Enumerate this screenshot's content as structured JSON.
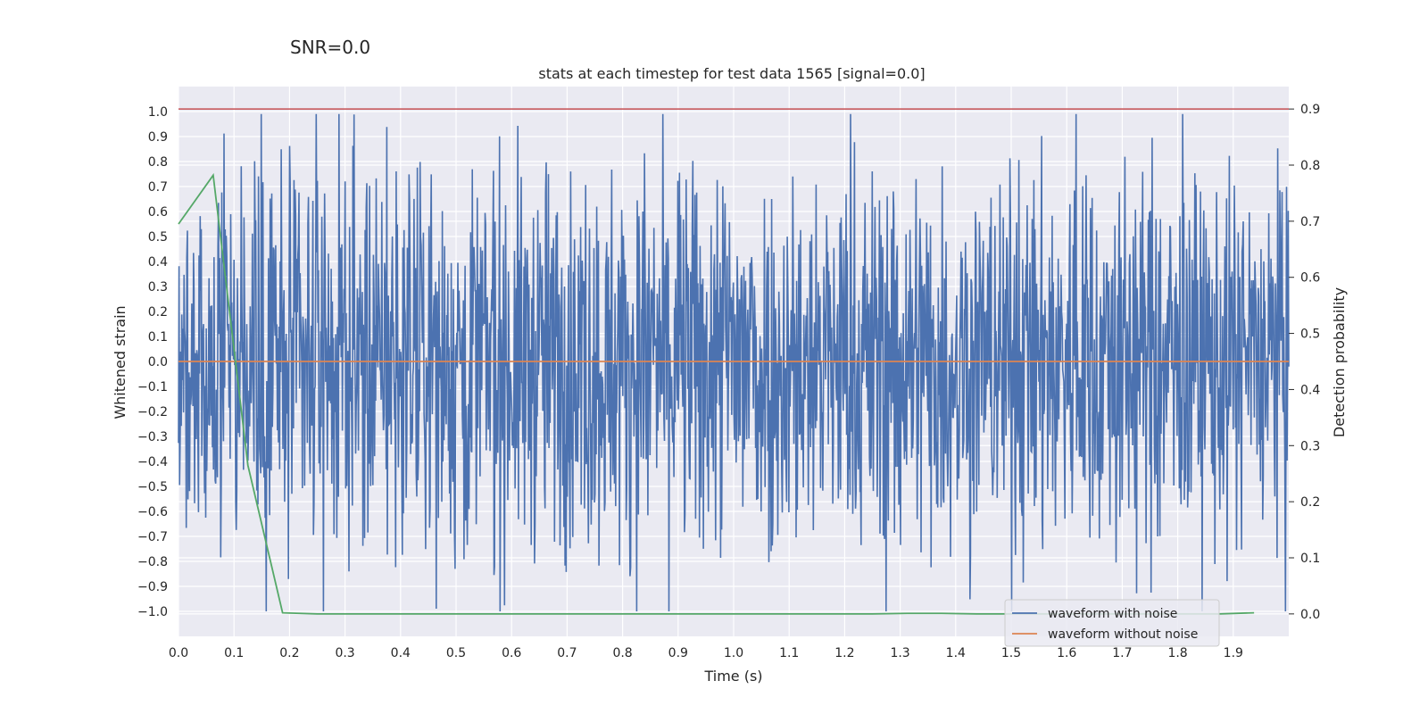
{
  "suptitle": "SNR=0.0",
  "chart_data": {
    "type": "line",
    "title": "stats at each timestep for test data 1565 [signal=0.0]",
    "xlabel": "Time (s)",
    "ylabel": "Whitened strain",
    "y2label": "Detection probability",
    "xlim": [
      0.0,
      2.0
    ],
    "ylim": [
      -1.1,
      1.1
    ],
    "y2lim": [
      -0.04,
      0.94
    ],
    "xticks": [
      0.0,
      0.1,
      0.2,
      0.3,
      0.4,
      0.5,
      0.6,
      0.7,
      0.8,
      0.9,
      1.0,
      1.1,
      1.2,
      1.3,
      1.4,
      1.5,
      1.6,
      1.7,
      1.8,
      1.9
    ],
    "xtick_labels": [
      "0.0",
      "0.1",
      "0.2",
      "0.3",
      "0.4",
      "0.5",
      "0.6",
      "0.7",
      "0.8",
      "0.9",
      "1.0",
      "1.1",
      "1.2",
      "1.3",
      "1.4",
      "1.5",
      "1.6",
      "1.7",
      "1.8",
      "1.9"
    ],
    "yticks": [
      1.0,
      0.9,
      0.8,
      0.7,
      0.6,
      0.5,
      0.4,
      0.3,
      0.2,
      0.1,
      0.0,
      -0.1,
      -0.2,
      -0.3,
      -0.4,
      -0.5,
      -0.6,
      -0.7,
      -0.8,
      -0.9,
      -1.0
    ],
    "ytick_labels": [
      "1.0",
      "0.9",
      "0.8",
      "0.7",
      "0.6",
      "0.5",
      "0.4",
      "0.3",
      "0.2",
      "0.1",
      "0.0",
      "−0.1",
      "−0.2",
      "−0.3",
      "−0.4",
      "−0.5",
      "−0.6",
      "−0.7",
      "−0.8",
      "−0.9",
      "−1.0"
    ],
    "y2ticks": [
      0.9,
      0.8,
      0.7,
      0.6,
      0.5,
      0.4,
      0.3,
      0.2,
      0.1,
      0.0
    ],
    "y2tick_labels": [
      "0.9",
      "0.8",
      "0.7",
      "0.6",
      "0.5",
      "0.4",
      "0.3",
      "0.2",
      "0.1",
      "0.0"
    ],
    "grid": true,
    "legend_position": "bottom-right",
    "series": [
      {
        "name": "waveform with noise",
        "axis": "left",
        "color": "#4c72b0",
        "sample_count": 2000,
        "x_range": [
          0.0,
          2.0
        ],
        "approx_range": [
          -1.0,
          0.99
        ],
        "random_seed": 1565
      },
      {
        "name": "waveform without noise",
        "axis": "left",
        "color": "#dd8452",
        "x": [
          0.0,
          2.0
        ],
        "y": [
          0.0,
          0.0
        ]
      },
      {
        "name": "detection probability",
        "axis": "right",
        "color": "#55a868",
        "x": [
          0.0,
          0.0625,
          0.125,
          0.1875,
          0.25,
          0.3125,
          0.375,
          0.4375,
          0.5,
          0.5625,
          0.625,
          0.6875,
          0.75,
          0.8125,
          0.875,
          0.9375,
          1.0,
          1.0625,
          1.125,
          1.1875,
          1.25,
          1.3125,
          1.375,
          1.4375,
          1.5,
          1.5625,
          1.625,
          1.6875,
          1.75,
          1.8125,
          1.875,
          1.9375
        ],
        "y": [
          0.695,
          0.782,
          0.265,
          0.002,
          0.0,
          0.0,
          0.0,
          0.0,
          0.0,
          0.0,
          0.0,
          0.0,
          0.0,
          0.0,
          0.0,
          0.0,
          0.0,
          0.0,
          0.0,
          0.0,
          0.0,
          0.001,
          0.001,
          0.0,
          0.0,
          0.0,
          0.0,
          0.0,
          0.0,
          0.0,
          0.0,
          0.002
        ]
      }
    ],
    "threshold_line": {
      "value": 0.9,
      "axis": "right",
      "color": "#c44e52"
    },
    "legend": [
      {
        "label": "waveform with noise",
        "color": "#4c72b0"
      },
      {
        "label": "waveform without noise",
        "color": "#dd8452"
      }
    ]
  }
}
